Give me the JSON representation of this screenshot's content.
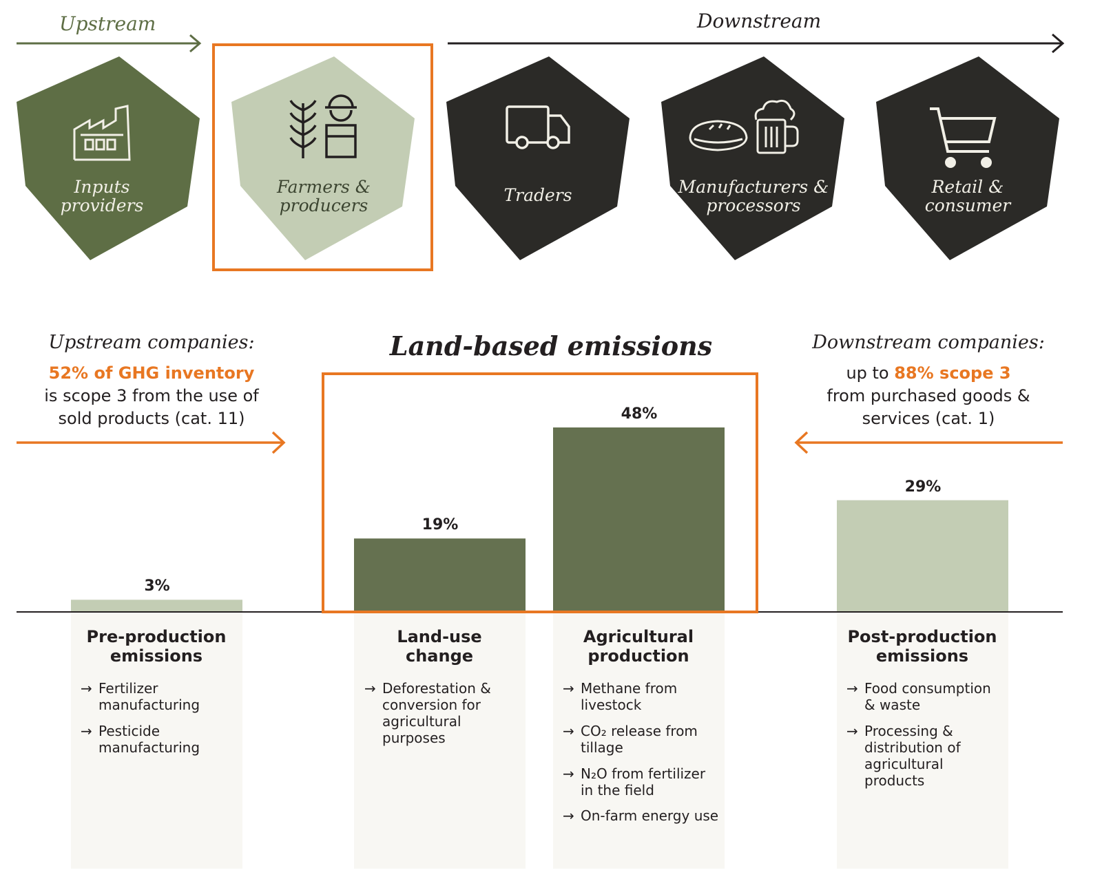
{
  "flow": {
    "upstream_label": "Upstream",
    "downstream_label": "Downstream",
    "stages": [
      {
        "label_1": "Inputs",
        "label_2": "providers",
        "icon": "factory-icon",
        "color": "#5e6e45"
      },
      {
        "label_1": "Farmers &",
        "label_2": "producers",
        "icon": "farmer-wheat-icon",
        "color": "#c3cdb4",
        "highlighted": true
      },
      {
        "label_1": "Traders",
        "label_2": "",
        "icon": "truck-icon",
        "color": "#2b2a27"
      },
      {
        "label_1": "Manufacturers &",
        "label_2": "processors",
        "icon": "pie-beer-icon",
        "color": "#2b2a27"
      },
      {
        "label_1": "Retail &",
        "label_2": "consumer",
        "icon": "shopping-cart-icon",
        "color": "#2b2a27"
      }
    ]
  },
  "upstream_note": {
    "title": "Upstream companies:",
    "highlight": "52% of GHG inventory",
    "line2": "is scope 3 from the use of",
    "line3": "sold products (cat. 11)"
  },
  "downstream_note": {
    "title": "Downstream companies:",
    "prefix": "up to ",
    "highlight": "88% scope 3",
    "line2": "from purchased goods &",
    "line3": "services (cat. 1)"
  },
  "main_title": "Land-based emissions",
  "colors": {
    "accent": "#e87722",
    "dark_green": "#657150",
    "light_green": "#c3cdb4",
    "panel": "#f8f7f3"
  },
  "chart_data": {
    "type": "bar",
    "categories": [
      "Pre-production emissions",
      "Land-use change",
      "Agricultural production",
      "Post-production emissions"
    ],
    "values": [
      3,
      19,
      48,
      29
    ],
    "value_labels": [
      "3%",
      "19%",
      "48%",
      "29%"
    ],
    "bar_colors": [
      "#c3cdb4",
      "#657150",
      "#657150",
      "#c3cdb4"
    ],
    "ylim": [
      0,
      48
    ],
    "title": "Land-based emissions",
    "xlabel": "",
    "ylabel": ""
  },
  "columns": [
    {
      "title_1": "Pre-production",
      "title_2": "emissions",
      "bullets": [
        [
          "Fertilizer",
          "manufacturing"
        ],
        [
          "Pesticide",
          "manufacturing"
        ]
      ]
    },
    {
      "title_1": "Land-use",
      "title_2": "change",
      "bullets": [
        [
          "Deforestation &",
          "conversion for",
          "agricultural",
          "purposes"
        ]
      ]
    },
    {
      "title_1": "Agricultural",
      "title_2": "production",
      "bullets": [
        [
          "Methane from",
          "livestock"
        ],
        [
          "CO₂ release from",
          "tillage"
        ],
        [
          "N₂O from fertilizer",
          "in the field"
        ],
        [
          "On-farm energy use"
        ]
      ]
    },
    {
      "title_1": "Post-production",
      "title_2": "emissions",
      "bullets": [
        [
          "Food consumption",
          "& waste"
        ],
        [
          "Processing &",
          "distribution of",
          "agricultural",
          "products"
        ]
      ]
    }
  ]
}
